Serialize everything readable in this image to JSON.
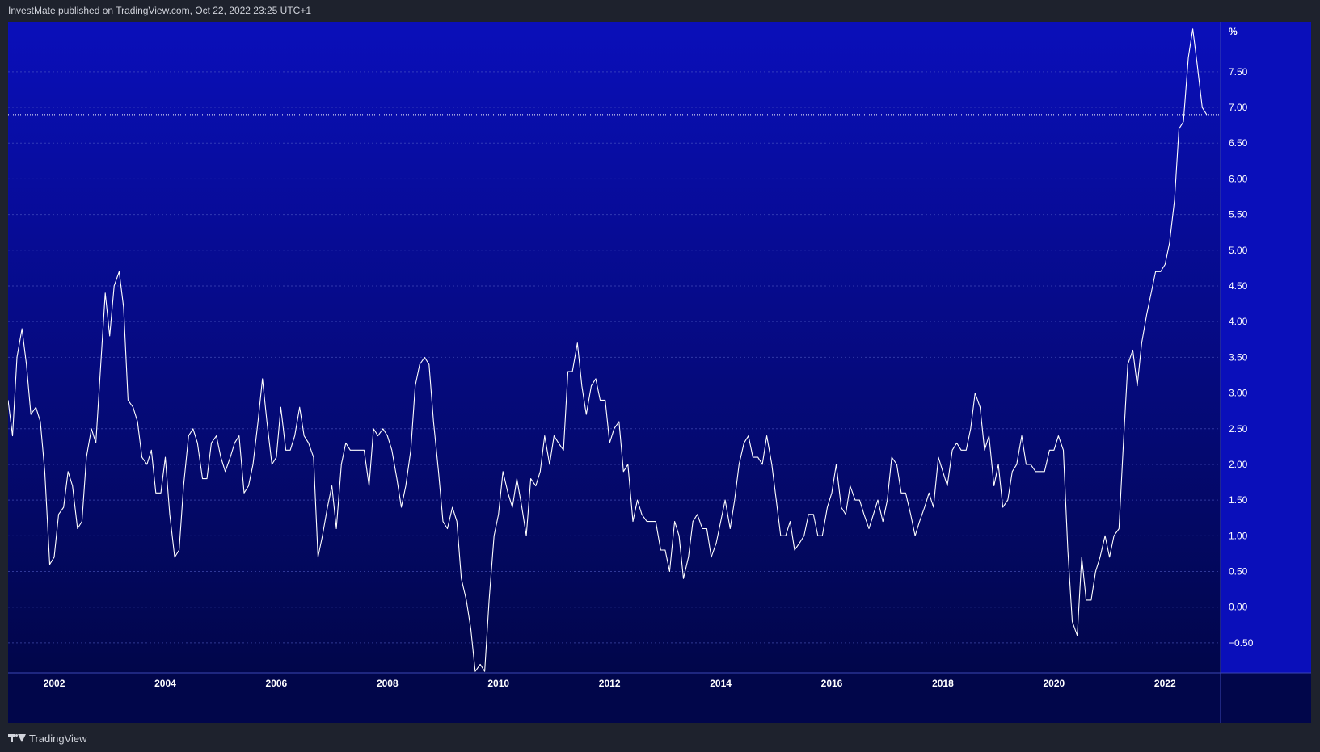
{
  "header": {
    "publisher_text": "InvestMate published on TradingView.com, Oct 22, 2022 23:25 UTC+1"
  },
  "footer": {
    "brand_label": "TradingView"
  },
  "colors": {
    "plot_top": "#0a0fba",
    "plot_bottom": "#01064a",
    "line": "#ffffff",
    "axis_text": "#ffffff",
    "grid": "#5560c8",
    "background": "#1e222d"
  },
  "chart_data": {
    "type": "line",
    "unit_label": "%",
    "y_ticks": [
      -0.5,
      0,
      0.5,
      1,
      1.5,
      2,
      2.5,
      3,
      3.5,
      4,
      4.5,
      5,
      5.5,
      6,
      6.5,
      7,
      7.5
    ],
    "y_tick_labels": [
      "−0.50",
      "0.00",
      "0.50",
      "1.00",
      "1.50",
      "2.00",
      "2.50",
      "3.00",
      "3.50",
      "4.00",
      "4.50",
      "5.00",
      "5.50",
      "6.00",
      "6.50",
      "7.00",
      "7.50"
    ],
    "ylim": [
      -0.92,
      8.2
    ],
    "x_ticks": [
      "2002",
      "2004",
      "2006",
      "2008",
      "2010",
      "2012",
      "2014",
      "2016",
      "2018",
      "2020",
      "2022"
    ],
    "xlim": [
      2001.17,
      2023.0
    ],
    "last_value": 6.9,
    "grid": true,
    "series": [
      {
        "x": [
          2001.17,
          2001.25,
          2001.33,
          2001.42,
          2001.5,
          2001.58,
          2001.67,
          2001.75,
          2001.83,
          2001.92,
          2002.0,
          2002.08,
          2002.17,
          2002.25,
          2002.33,
          2002.42,
          2002.5,
          2002.58,
          2002.67,
          2002.75,
          2002.83,
          2002.92,
          2003.0,
          2003.08,
          2003.17,
          2003.25,
          2003.33,
          2003.42,
          2003.5,
          2003.58,
          2003.67,
          2003.75,
          2003.83,
          2003.92,
          2004.0,
          2004.08,
          2004.17,
          2004.25,
          2004.33,
          2004.42,
          2004.5,
          2004.58,
          2004.67,
          2004.75,
          2004.83,
          2004.92,
          2005.0,
          2005.08,
          2005.17,
          2005.25,
          2005.33,
          2005.42,
          2005.5,
          2005.58,
          2005.67,
          2005.75,
          2005.83,
          2005.92,
          2006.0,
          2006.08,
          2006.17,
          2006.25,
          2006.33,
          2006.42,
          2006.5,
          2006.58,
          2006.67,
          2006.75,
          2006.83,
          2006.92,
          2007.0,
          2007.08,
          2007.17,
          2007.25,
          2007.33,
          2007.42,
          2007.5,
          2007.58,
          2007.67,
          2007.75,
          2007.83,
          2007.92,
          2008.0,
          2008.08,
          2008.17,
          2008.25,
          2008.33,
          2008.42,
          2008.5,
          2008.58,
          2008.67,
          2008.75,
          2008.83,
          2008.92,
          2009.0,
          2009.08,
          2009.17,
          2009.25,
          2009.33,
          2009.42,
          2009.5,
          2009.58,
          2009.67,
          2009.75,
          2009.83,
          2009.92,
          2010.0,
          2010.08,
          2010.17,
          2010.25,
          2010.33,
          2010.42,
          2010.5,
          2010.58,
          2010.67,
          2010.75,
          2010.83,
          2010.92,
          2011.0,
          2011.08,
          2011.17,
          2011.25,
          2011.33,
          2011.42,
          2011.5,
          2011.58,
          2011.67,
          2011.75,
          2011.83,
          2011.92,
          2012.0,
          2012.08,
          2012.17,
          2012.25,
          2012.33,
          2012.42,
          2012.5,
          2012.58,
          2012.67,
          2012.75,
          2012.83,
          2012.92,
          2013.0,
          2013.08,
          2013.17,
          2013.25,
          2013.33,
          2013.42,
          2013.5,
          2013.58,
          2013.67,
          2013.75,
          2013.83,
          2013.92,
          2014.0,
          2014.08,
          2014.17,
          2014.25,
          2014.33,
          2014.42,
          2014.5,
          2014.58,
          2014.67,
          2014.75,
          2014.83,
          2014.92,
          2015.0,
          2015.08,
          2015.17,
          2015.25,
          2015.33,
          2015.42,
          2015.5,
          2015.58,
          2015.67,
          2015.75,
          2015.83,
          2015.92,
          2016.0,
          2016.08,
          2016.17,
          2016.25,
          2016.33,
          2016.42,
          2016.5,
          2016.58,
          2016.67,
          2016.75,
          2016.83,
          2016.92,
          2017.0,
          2017.08,
          2017.17,
          2017.25,
          2017.33,
          2017.42,
          2017.5,
          2017.58,
          2017.67,
          2017.75,
          2017.83,
          2017.92,
          2018.0,
          2018.08,
          2018.17,
          2018.25,
          2018.33,
          2018.42,
          2018.5,
          2018.58,
          2018.67,
          2018.75,
          2018.83,
          2018.92,
          2019.0,
          2019.08,
          2019.17,
          2019.25,
          2019.33,
          2019.42,
          2019.5,
          2019.58,
          2019.67,
          2019.75,
          2019.83,
          2019.92,
          2020.0,
          2020.08,
          2020.17,
          2020.25,
          2020.33,
          2020.42,
          2020.5,
          2020.58,
          2020.67,
          2020.75,
          2020.83,
          2020.92,
          2021.0,
          2021.08,
          2021.17,
          2021.25,
          2021.33,
          2021.42,
          2021.5,
          2021.58,
          2021.67,
          2021.75,
          2021.83,
          2021.92,
          2022.0,
          2022.08,
          2022.17,
          2022.25,
          2022.33,
          2022.42,
          2022.5,
          2022.58,
          2022.67,
          2022.75
        ],
        "values": [
          2.9,
          2.4,
          3.5,
          3.9,
          3.4,
          2.7,
          2.8,
          2.6,
          1.9,
          0.6,
          0.7,
          1.3,
          1.4,
          1.9,
          1.7,
          1.1,
          1.2,
          2.1,
          2.5,
          2.3,
          3.3,
          4.4,
          3.8,
          4.5,
          4.7,
          4.2,
          2.9,
          2.8,
          2.6,
          2.1,
          2.0,
          2.2,
          1.6,
          1.6,
          2.1,
          1.3,
          0.7,
          0.8,
          1.7,
          2.4,
          2.5,
          2.3,
          1.8,
          1.8,
          2.3,
          2.4,
          2.1,
          1.9,
          2.1,
          2.3,
          2.4,
          1.6,
          1.7,
          2.0,
          2.6,
          3.2,
          2.6,
          2.0,
          2.1,
          2.8,
          2.2,
          2.2,
          2.4,
          2.8,
          2.4,
          2.3,
          2.1,
          0.7,
          1.0,
          1.4,
          1.7,
          1.1,
          2.0,
          2.3,
          2.2,
          2.2,
          2.2,
          2.2,
          1.7,
          2.5,
          2.4,
          2.5,
          2.4,
          2.2,
          1.8,
          1.4,
          1.7,
          2.2,
          3.1,
          3.4,
          3.5,
          3.4,
          2.6,
          1.9,
          1.2,
          1.1,
          1.4,
          1.2,
          0.4,
          0.1,
          -0.3,
          -0.9,
          -0.8,
          -0.9,
          0.1,
          1.0,
          1.3,
          1.9,
          1.6,
          1.4,
          1.8,
          1.4,
          1.0,
          1.8,
          1.7,
          1.9,
          2.4,
          2.0,
          2.4,
          2.3,
          2.2,
          3.3,
          3.3,
          3.7,
          3.1,
          2.7,
          3.1,
          3.2,
          2.9,
          2.9,
          2.3,
          2.5,
          2.6,
          1.9,
          2.0,
          1.2,
          1.5,
          1.3,
          1.2,
          1.2,
          1.2,
          0.8,
          0.8,
          0.5,
          1.2,
          1.0,
          0.4,
          0.7,
          1.2,
          1.3,
          1.1,
          1.1,
          0.7,
          0.9,
          1.2,
          1.5,
          1.1,
          1.5,
          2.0,
          2.3,
          2.4,
          2.1,
          2.1,
          2.0,
          2.4,
          2.0,
          1.5,
          1.0,
          1.0,
          1.2,
          0.8,
          0.9,
          1.0,
          1.3,
          1.3,
          1.0,
          1.0,
          1.4,
          1.6,
          2.0,
          1.4,
          1.3,
          1.7,
          1.5,
          1.5,
          1.3,
          1.1,
          1.3,
          1.5,
          1.2,
          1.5,
          2.1,
          2.0,
          1.6,
          1.6,
          1.3,
          1.0,
          1.2,
          1.4,
          1.6,
          1.4,
          2.1,
          1.9,
          1.7,
          2.2,
          2.3,
          2.2,
          2.2,
          2.5,
          3.0,
          2.8,
          2.2,
          2.4,
          1.7,
          2.0,
          1.4,
          1.5,
          1.9,
          2.0,
          2.4,
          2.0,
          2.0,
          1.9,
          1.9,
          1.9,
          2.2,
          2.2,
          2.4,
          2.2,
          0.8,
          -0.2,
          -0.4,
          0.7,
          0.1,
          0.1,
          0.5,
          0.7,
          1.0,
          0.7,
          1.0,
          1.1,
          2.3,
          3.4,
          3.6,
          3.1,
          3.7,
          4.1,
          4.4,
          4.7,
          4.7,
          4.8,
          5.1,
          5.7,
          6.7,
          6.8,
          7.7,
          8.1,
          7.6,
          7.0,
          6.9
        ]
      }
    ]
  }
}
